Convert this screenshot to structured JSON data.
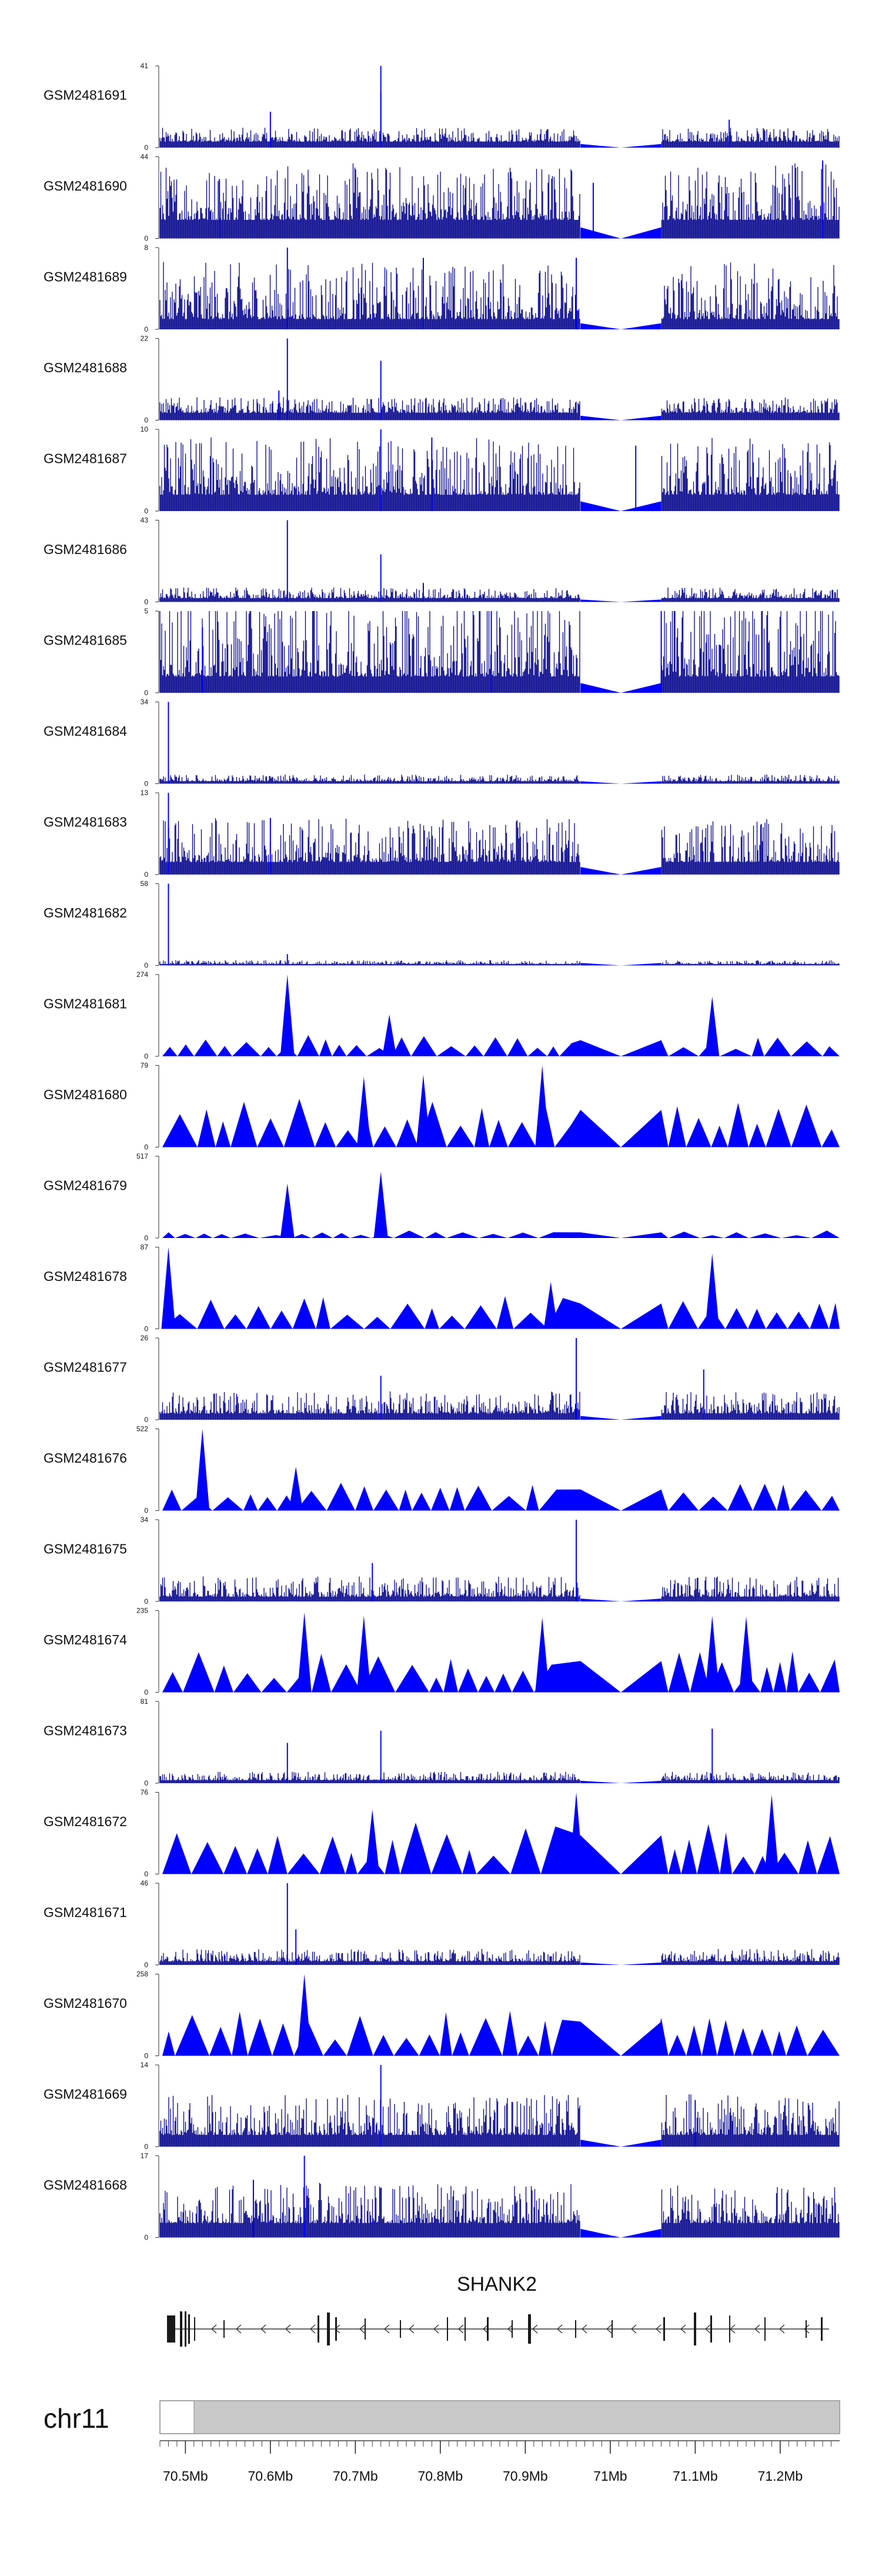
{
  "colors": {
    "signal": "#0000ff",
    "signal_dark": "#00008b",
    "gene": "#333333",
    "ideogram": "#c8c8c8"
  },
  "chart_data": {
    "type": "area",
    "x_unit": "Mb",
    "xlim": [
      70.47,
      71.27
    ],
    "x_ticks": [
      70.5,
      70.6,
      70.7,
      70.8,
      70.9,
      71.0,
      71.1,
      71.2
    ],
    "x_tick_labels": [
      "70.5Mb",
      "70.6Mb",
      "70.7Mb",
      "70.8Mb",
      "70.9Mb",
      "71Mb",
      "71.1Mb",
      "71.2Mb"
    ],
    "chromosome": "chr11",
    "gene": "SHANK2",
    "gap": [
      70.965,
      71.06
    ],
    "series": [
      {
        "name": "GSM2481691",
        "ymax": 41,
        "style": "dense",
        "baseline": 3,
        "noise": 5,
        "peaks": [
          [
            70.73,
            41
          ],
          [
            70.73,
            28
          ],
          [
            70.6,
            18
          ],
          [
            71.14,
            14
          ]
        ]
      },
      {
        "name": "GSM2481690",
        "ymax": 44,
        "style": "dense",
        "baseline": 10,
        "noise": 22,
        "peaks": [
          [
            71.25,
            42
          ],
          [
            70.54,
            32
          ],
          [
            70.98,
            30
          ]
        ]
      },
      {
        "name": "GSM2481689",
        "ymax": 8,
        "style": "dense",
        "baseline": 1,
        "noise": 4,
        "peaks": [
          [
            70.62,
            8
          ],
          [
            70.78,
            7
          ],
          [
            70.96,
            7
          ]
        ]
      },
      {
        "name": "GSM2481688",
        "ymax": 22,
        "style": "dense",
        "baseline": 2,
        "noise": 3,
        "peaks": [
          [
            70.62,
            22
          ],
          [
            70.73,
            16
          ],
          [
            70.61,
            8
          ]
        ]
      },
      {
        "name": "GSM2481687",
        "ymax": 10,
        "style": "dense",
        "baseline": 2,
        "noise": 5,
        "peaks": [
          [
            70.73,
            10
          ],
          [
            70.79,
            9
          ],
          [
            71.03,
            8
          ]
        ]
      },
      {
        "name": "GSM2481686",
        "ymax": 43,
        "style": "dense",
        "baseline": 2,
        "noise": 4,
        "peaks": [
          [
            70.62,
            43
          ],
          [
            70.73,
            25
          ],
          [
            70.78,
            10
          ]
        ]
      },
      {
        "name": "GSM2481685",
        "ymax": 5,
        "style": "dense",
        "baseline": 1,
        "noise": 4,
        "peaks": [
          [
            70.86,
            5
          ],
          [
            71.06,
            5
          ],
          [
            70.52,
            4
          ]
        ]
      },
      {
        "name": "GSM2481684",
        "ymax": 34,
        "style": "dense",
        "baseline": 1,
        "noise": 2,
        "peaks": [
          [
            70.48,
            34
          ]
        ]
      },
      {
        "name": "GSM2481683",
        "ymax": 13,
        "style": "dense",
        "baseline": 2,
        "noise": 5,
        "peaks": [
          [
            70.48,
            13
          ],
          [
            70.6,
            9
          ]
        ]
      },
      {
        "name": "GSM2481682",
        "ymax": 58,
        "style": "dense",
        "baseline": 1,
        "noise": 2,
        "peaks": [
          [
            70.48,
            58
          ],
          [
            70.62,
            8
          ]
        ]
      },
      {
        "name": "GSM2481681",
        "ymax": 274,
        "style": "triangles",
        "tri_height": 60,
        "peaks": [
          [
            70.62,
            274
          ],
          [
            70.74,
            140
          ],
          [
            71.12,
            200
          ]
        ]
      },
      {
        "name": "GSM2481680",
        "ymax": 79,
        "style": "triangles",
        "tri_height": 40,
        "peaks": [
          [
            70.92,
            79
          ],
          [
            70.78,
            70
          ],
          [
            70.71,
            68
          ]
        ]
      },
      {
        "name": "GSM2481679",
        "ymax": 517,
        "style": "triangles",
        "tri_height": 40,
        "peaks": [
          [
            70.62,
            345
          ],
          [
            70.73,
            420
          ]
        ]
      },
      {
        "name": "GSM2481678",
        "ymax": 87,
        "style": "triangles",
        "tri_height": 30,
        "peaks": [
          [
            70.48,
            87
          ],
          [
            71.12,
            80
          ],
          [
            70.93,
            50
          ]
        ]
      },
      {
        "name": "GSM2481677",
        "ymax": 26,
        "style": "dense",
        "baseline": 2,
        "noise": 5,
        "peaks": [
          [
            70.96,
            26
          ],
          [
            71.11,
            16
          ],
          [
            70.73,
            14
          ]
        ]
      },
      {
        "name": "GSM2481676",
        "ymax": 522,
        "style": "triangles",
        "tri_height": 150,
        "peaks": [
          [
            70.52,
            522
          ],
          [
            70.63,
            280
          ]
        ]
      },
      {
        "name": "GSM2481675",
        "ymax": 34,
        "style": "dense",
        "baseline": 2,
        "noise": 6,
        "peaks": [
          [
            70.96,
            34
          ],
          [
            70.72,
            16
          ]
        ]
      },
      {
        "name": "GSM2481674",
        "ymax": 235,
        "style": "triangles",
        "tri_height": 100,
        "peaks": [
          [
            70.64,
            230
          ],
          [
            70.71,
            220
          ],
          [
            70.92,
            215
          ],
          [
            71.12,
            220
          ],
          [
            71.16,
            218
          ]
        ]
      },
      {
        "name": "GSM2481673",
        "ymax": 81,
        "style": "dense",
        "baseline": 3,
        "noise": 6,
        "peaks": [
          [
            71.12,
            54
          ],
          [
            70.73,
            52
          ],
          [
            70.62,
            40
          ]
        ]
      },
      {
        "name": "GSM2481672",
        "ymax": 76,
        "style": "triangles",
        "tri_height": 40,
        "peaks": [
          [
            71.19,
            74
          ],
          [
            70.96,
            76
          ],
          [
            70.72,
            60
          ]
        ]
      },
      {
        "name": "GSM2481671",
        "ymax": 46,
        "style": "dense",
        "baseline": 2,
        "noise": 5,
        "peaks": [
          [
            70.62,
            46
          ],
          [
            70.63,
            20
          ]
        ]
      },
      {
        "name": "GSM2481670",
        "ymax": 258,
        "style": "triangles",
        "tri_height": 120,
        "peaks": [
          [
            70.64,
            258
          ],
          [
            71.06,
            120
          ]
        ]
      },
      {
        "name": "GSM2481669",
        "ymax": 14,
        "style": "dense",
        "baseline": 2,
        "noise": 5,
        "peaks": [
          [
            70.73,
            14
          ],
          [
            71.1,
            8
          ]
        ]
      },
      {
        "name": "GSM2481668",
        "ymax": 17,
        "style": "dense",
        "baseline": 3,
        "noise": 6,
        "peaks": [
          [
            70.64,
            17
          ],
          [
            70.58,
            12
          ]
        ]
      }
    ]
  }
}
